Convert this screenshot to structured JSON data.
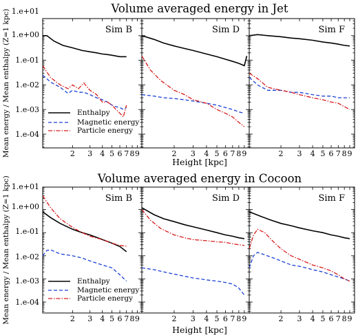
{
  "figure_titles": [
    "Volume averaged energy in Jet",
    "Volume averaged energy in Cocoon"
  ],
  "colors": {
    "enthalpy": "#000000",
    "magnetic": "#1a3fd6",
    "particle": "#d61a1a"
  },
  "chart_data": [
    {
      "type": "line",
      "title": "Volume averaged energy in Jet",
      "xlabel": "Height [kpc]",
      "ylabel": "Mean energy / Mean enthalpy (Z=1 kpc)",
      "yscale": "log",
      "xscale": "log",
      "xlim": [
        1,
        10
      ],
      "ylim": [
        1e-05,
        10
      ],
      "y_tick_labels": [
        "1.e+01",
        "1.e+00",
        "1.e-01",
        "1.e-02",
        "1.e-03",
        "1.e-04"
      ],
      "x_tick_labels": [
        "2",
        "3",
        "4",
        "5",
        "6",
        "7",
        "8",
        "9"
      ],
      "legend": {
        "position": "lower-left",
        "panel": "Sim B",
        "entries": [
          "Enthalpy",
          "Magnetic energy",
          "Particle energy"
        ]
      },
      "panels": [
        {
          "label": "Sim B",
          "series": [
            {
              "name": "Enthalpy",
              "x": [
                1.0,
                1.1,
                1.3,
                1.6,
                2.0,
                2.5,
                3.0,
                3.5,
                4.0,
                4.5,
                5.0,
                6.0,
                7.0
              ],
              "y": [
                1.0,
                1.0,
                0.6,
                0.4,
                0.32,
                0.25,
                0.22,
                0.2,
                0.18,
                0.17,
                0.16,
                0.14,
                0.14
              ]
            },
            {
              "name": "Magnetic energy",
              "x": [
                1.0,
                1.2,
                1.5,
                1.8,
                2.0,
                2.3,
                2.6,
                3.0,
                3.5,
                4.0,
                4.5,
                5.0,
                5.5,
                6.0,
                6.5,
                7.0
              ],
              "y": [
                0.025,
                0.013,
                0.008,
                0.0045,
                0.006,
                0.005,
                0.005,
                0.004,
                0.003,
                0.0025,
                0.002,
                0.0015,
                0.0013,
                0.0012,
                0.001,
                0.0012
              ]
            },
            {
              "name": "Particle energy",
              "x": [
                1.0,
                1.2,
                1.5,
                1.8,
                2.0,
                2.3,
                2.6,
                3.0,
                3.5,
                4.0,
                4.5,
                5.0,
                5.5,
                6.0,
                6.5,
                7.0
              ],
              "y": [
                0.06,
                0.02,
                0.01,
                0.007,
                0.01,
                0.007,
                0.012,
                0.006,
                0.004,
                0.002,
                0.002,
                0.0015,
                0.001,
                0.0007,
                0.0005,
                0.0015
              ]
            }
          ]
        },
        {
          "label": "Sim D",
          "series": [
            {
              "name": "Enthalpy",
              "x": [
                1.0,
                1.3,
                1.6,
                2.0,
                2.5,
                3.0,
                4.0,
                5.0,
                6.0,
                7.0,
                8.0,
                9.0,
                9.5
              ],
              "y": [
                1.0,
                0.7,
                0.5,
                0.38,
                0.3,
                0.25,
                0.18,
                0.14,
                0.11,
                0.09,
                0.075,
                0.06,
                0.15
              ]
            },
            {
              "name": "Magnetic energy",
              "x": [
                1.0,
                1.3,
                1.6,
                2.0,
                2.5,
                3.0,
                4.0,
                5.0,
                6.0,
                7.0,
                8.0,
                9.0
              ],
              "y": [
                0.004,
                0.0035,
                0.003,
                0.0028,
                0.0025,
                0.0022,
                0.0018,
                0.0015,
                0.0012,
                0.001,
                0.0008,
                0.0007
              ]
            },
            {
              "name": "Particle energy",
              "x": [
                1.0,
                1.2,
                1.5,
                2.0,
                2.5,
                3.0,
                4.0,
                5.0,
                6.0,
                7.0,
                8.0,
                9.0
              ],
              "y": [
                0.15,
                0.04,
                0.015,
                0.006,
                0.004,
                0.0025,
                0.0018,
                0.001,
                0.0007,
                0.0005,
                0.0003,
                0.0002
              ]
            }
          ]
        },
        {
          "label": "Sim F",
          "series": [
            {
              "name": "Enthalpy",
              "x": [
                1.0,
                1.2,
                1.5,
                2.0,
                2.5,
                3.0,
                4.0,
                5.0,
                6.0,
                7.0,
                8.0,
                9.0
              ],
              "y": [
                1.0,
                1.1,
                1.0,
                0.9,
                0.8,
                0.75,
                0.65,
                0.55,
                0.5,
                0.45,
                0.4,
                0.38
              ]
            },
            {
              "name": "Magnetic energy",
              "x": [
                1.0,
                1.2,
                1.5,
                2.0,
                2.5,
                3.0,
                4.0,
                5.0,
                6.0,
                7.0,
                8.0,
                9.0
              ],
              "y": [
                0.02,
                0.01,
                0.006,
                0.006,
                0.005,
                0.005,
                0.004,
                0.0035,
                0.0035,
                0.003,
                0.003,
                0.003
              ]
            },
            {
              "name": "Particle energy",
              "x": [
                1.0,
                1.2,
                1.5,
                2.0,
                2.5,
                3.0,
                4.0,
                5.0,
                6.0,
                7.0,
                8.0,
                9.0
              ],
              "y": [
                0.03,
                0.018,
                0.008,
                0.006,
                0.005,
                0.004,
                0.003,
                0.0025,
                0.002,
                0.0018,
                0.0013,
                0.001
              ]
            }
          ]
        }
      ]
    },
    {
      "type": "line",
      "title": "Volume averaged energy in Cocoon",
      "xlabel": "Height [kpc]",
      "ylabel": "Mean energy / Mean enthalpy (Z=1 kpc)",
      "yscale": "log",
      "xscale": "log",
      "xlim": [
        1,
        10
      ],
      "ylim": [
        5e-05,
        10
      ],
      "y_tick_labels": [
        "1.e+01",
        "1.e+00",
        "1.e-01",
        "1.e-02",
        "1.e-03",
        "1.e-04"
      ],
      "x_tick_labels": [
        "2",
        "3",
        "4",
        "5",
        "6",
        "7",
        "8",
        "9"
      ],
      "legend": {
        "position": "lower-left",
        "panel": "Sim B",
        "entries": [
          "Enthalpy",
          "Magnetic energy",
          "Particle energy"
        ]
      },
      "panels": [
        {
          "label": "Sim B",
          "series": [
            {
              "name": "Enthalpy",
              "x": [
                1.0,
                1.2,
                1.5,
                2.0,
                2.5,
                3.0,
                4.0,
                5.0,
                6.0,
                7.0
              ],
              "y": [
                0.8,
                0.45,
                0.25,
                0.14,
                0.1,
                0.08,
                0.05,
                0.035,
                0.025,
                0.015
              ]
            },
            {
              "name": "Magnetic energy",
              "x": [
                1.0,
                1.1,
                1.2,
                1.5,
                2.0,
                2.5,
                3.0,
                4.0,
                5.0,
                6.0,
                7.0
              ],
              "y": [
                0.01,
                0.017,
                0.018,
                0.012,
                0.01,
                0.008,
                0.006,
                0.004,
                0.003,
                0.0015,
                0.0008
              ]
            },
            {
              "name": "Particle energy",
              "x": [
                1.0,
                1.2,
                1.5,
                2.0,
                2.5,
                3.0,
                4.0,
                5.0,
                6.0,
                7.0
              ],
              "y": [
                4.0,
                1.2,
                0.4,
                0.17,
                0.1,
                0.07,
                0.05,
                0.035,
                0.028,
                0.026
              ]
            }
          ]
        },
        {
          "label": "Sim D",
          "series": [
            {
              "name": "Enthalpy",
              "x": [
                1.0,
                1.3,
                1.6,
                2.0,
                2.5,
                3.0,
                4.0,
                5.0,
                6.0,
                7.0,
                8.0,
                9.0
              ],
              "y": [
                1.2,
                0.6,
                0.4,
                0.3,
                0.22,
                0.18,
                0.13,
                0.1,
                0.08,
                0.07,
                0.06,
                0.055
              ]
            },
            {
              "name": "Magnetic energy",
              "x": [
                1.0,
                1.3,
                1.6,
                2.0,
                2.5,
                3.0,
                4.0,
                5.0,
                6.0,
                7.0,
                8.0,
                9.0
              ],
              "y": [
                0.003,
                0.0025,
                0.002,
                0.0016,
                0.0013,
                0.0011,
                0.0009,
                0.0008,
                0.0007,
                0.0006,
                0.0004,
                0.0002
              ]
            },
            {
              "name": "Particle energy",
              "x": [
                1.0,
                1.2,
                1.5,
                2.0,
                2.5,
                3.0,
                4.0,
                5.0,
                6.0,
                7.0,
                8.0,
                9.0
              ],
              "y": [
                1.0,
                0.35,
                0.15,
                0.08,
                0.06,
                0.05,
                0.045,
                0.04,
                0.038,
                0.033,
                0.03,
                0.028
              ]
            }
          ]
        },
        {
          "label": "Sim F",
          "series": [
            {
              "name": "Enthalpy",
              "x": [
                1.0,
                1.3,
                1.6,
                2.0,
                2.5,
                3.0,
                4.0,
                5.0,
                6.0,
                7.0,
                8.0,
                9.0
              ],
              "y": [
                0.8,
                0.5,
                0.35,
                0.25,
                0.2,
                0.16,
                0.12,
                0.1,
                0.08,
                0.07,
                0.06,
                0.055
              ]
            },
            {
              "name": "Magnetic energy",
              "x": [
                1.0,
                1.1,
                1.2,
                1.4,
                1.7,
                2.0,
                2.5,
                3.0,
                4.0,
                5.0,
                6.0,
                7.0,
                8.0,
                9.0
              ],
              "y": [
                0.003,
                0.01,
                0.014,
                0.011,
                0.008,
                0.006,
                0.004,
                0.0035,
                0.0025,
                0.002,
                0.0015,
                0.0012,
                0.001,
                0.0008
              ]
            },
            {
              "name": "Particle energy",
              "x": [
                1.0,
                1.1,
                1.2,
                1.4,
                1.7,
                2.0,
                2.5,
                3.0,
                4.0,
                5.0,
                6.0,
                7.0,
                8.0,
                9.0
              ],
              "y": [
                0.02,
                0.08,
                0.14,
                0.1,
                0.04,
                0.02,
                0.01,
                0.007,
                0.004,
                0.003,
                0.0022,
                0.0015,
                0.001,
                0.0008
              ]
            }
          ]
        }
      ]
    }
  ]
}
